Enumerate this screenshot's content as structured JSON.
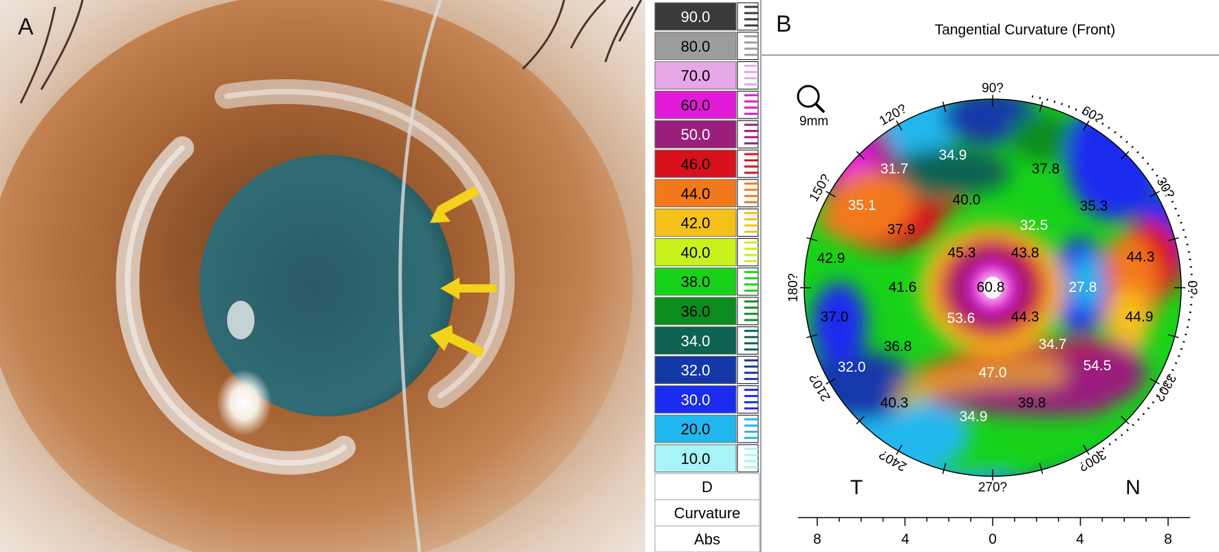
{
  "panel_a": {
    "letter": "A",
    "colors": {
      "iris": "#b07040",
      "pupil": "#2f6a72",
      "sclera": "#e9e2da",
      "arrow": "#f2d21b"
    }
  },
  "panel_b": {
    "letter": "B",
    "title": "Tangential Curvature (Front)",
    "zoom_label": "9mm",
    "scale": {
      "steps": [
        {
          "value": "90.0",
          "color": "#3a3a3a",
          "text_color": "#ffffff"
        },
        {
          "value": "80.0",
          "color": "#9c9c9c",
          "text_color": "#000000"
        },
        {
          "value": "70.0",
          "color": "#e6a8e6",
          "text_color": "#000000"
        },
        {
          "value": "60.0",
          "color": "#e21ad8",
          "text_color": "#000000"
        },
        {
          "value": "50.0",
          "color": "#9a1f7c",
          "text_color": "#ffffff"
        },
        {
          "value": "46.0",
          "color": "#d8101c",
          "text_color": "#000000"
        },
        {
          "value": "44.0",
          "color": "#f3781c",
          "text_color": "#000000"
        },
        {
          "value": "42.0",
          "color": "#f6c01a",
          "text_color": "#000000"
        },
        {
          "value": "40.0",
          "color": "#c8f21a",
          "text_color": "#000000"
        },
        {
          "value": "38.0",
          "color": "#18d21a",
          "text_color": "#000000"
        },
        {
          "value": "36.0",
          "color": "#0c8c1e",
          "text_color": "#000000"
        },
        {
          "value": "34.0",
          "color": "#0e6252",
          "text_color": "#ffffff"
        },
        {
          "value": "32.0",
          "color": "#1438a8",
          "text_color": "#ffffff"
        },
        {
          "value": "30.0",
          "color": "#1a2cf0",
          "text_color": "#ffffff"
        },
        {
          "value": "20.0",
          "color": "#20b8ee",
          "text_color": "#000000"
        },
        {
          "value": "10.0",
          "color": "#a6f4f6",
          "text_color": "#000000"
        }
      ],
      "unit": "D",
      "mode": "Curvature",
      "type": "Abs"
    },
    "angles": [
      "90?",
      "60?",
      "30?",
      "0?",
      "330?",
      "300?",
      "270?",
      "240?",
      "210?",
      "180?",
      "150?",
      "120?"
    ],
    "orientation": {
      "left": "T",
      "right": "N"
    },
    "x_axis_ticks": [
      "8",
      "4",
      "0",
      "4",
      "8"
    ],
    "map_values": [
      {
        "v": "34.9",
        "c": "#ffffff"
      },
      {
        "v": "31.7",
        "c": "#ffffff"
      },
      {
        "v": "37.8",
        "c": "#000000"
      },
      {
        "v": "35.1",
        "c": "#ffffff"
      },
      {
        "v": "40.0",
        "c": "#000000"
      },
      {
        "v": "35.3",
        "c": "#000000"
      },
      {
        "v": "37.9",
        "c": "#000000"
      },
      {
        "v": "32.5",
        "c": "#ffffff"
      },
      {
        "v": "42.9",
        "c": "#000000"
      },
      {
        "v": "45.3",
        "c": "#000000"
      },
      {
        "v": "43.8",
        "c": "#000000"
      },
      {
        "v": "44.3",
        "c": "#000000"
      },
      {
        "v": "41.6",
        "c": "#000000"
      },
      {
        "v": "60.8",
        "c": "#000000"
      },
      {
        "v": "27.8",
        "c": "#ffffff"
      },
      {
        "v": "37.0",
        "c": "#000000"
      },
      {
        "v": "53.6",
        "c": "#ffffff"
      },
      {
        "v": "44.3",
        "c": "#000000"
      },
      {
        "v": "44.9",
        "c": "#000000"
      },
      {
        "v": "36.8",
        "c": "#000000"
      },
      {
        "v": "34.7",
        "c": "#ffffff"
      },
      {
        "v": "32.0",
        "c": "#ffffff"
      },
      {
        "v": "47.0",
        "c": "#ffffff"
      },
      {
        "v": "54.5",
        "c": "#ffffff"
      },
      {
        "v": "40.3",
        "c": "#000000"
      },
      {
        "v": "39.8",
        "c": "#000000"
      },
      {
        "v": "34.9",
        "c": "#ffffff"
      }
    ]
  }
}
